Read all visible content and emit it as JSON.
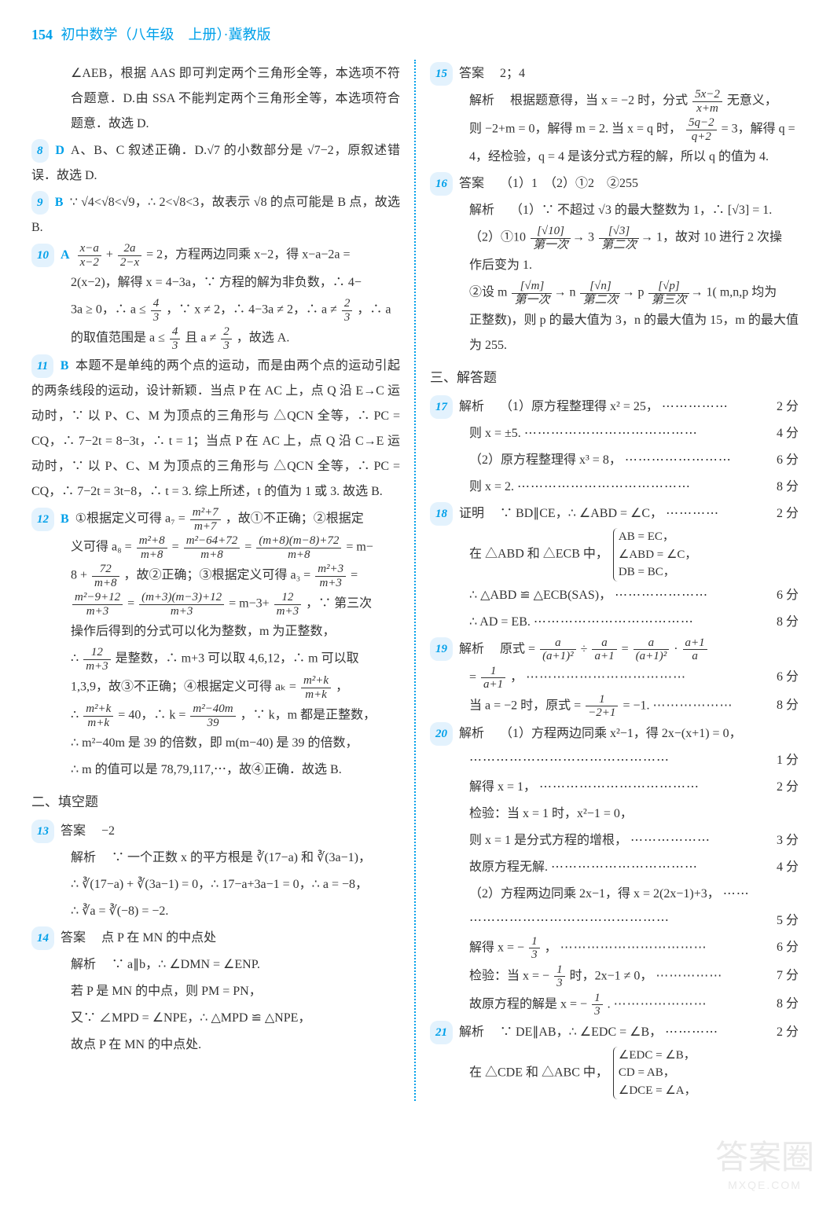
{
  "header": {
    "page_number": "154",
    "title": "初中数学（八年级　上册）·冀教版"
  },
  "left": {
    "p1": "∠AEB，根据 AAS 即可判定两个三角形全等，本选项不符合题意．D.由 SSA 不能判定两个三角形全等，本选项符合题意．故选 D.",
    "q8_num": "8",
    "q8_ans": "D",
    "q8_text": "A、B、C 叙述正确．D.√7 的小数部分是 √7−2，原叙述错误．故选 D.",
    "q9_num": "9",
    "q9_ans": "B",
    "q9_text": "∵ √4<√8<√9，∴ 2<√8<3，故表示 √8 的点可能是 B 点，故选 B.",
    "q10_num": "10",
    "q10_ans": "A",
    "q10_frac1_num": "x−a",
    "q10_frac1_den": "x−2",
    "q10_frac2_num": "2a",
    "q10_frac2_den": "2−x",
    "q10_text1": "= 2，方程两边同乘 x−2，得 x−a−2a =",
    "q10_text2": "2(x−2)，解得 x = 4−3a，∵ 方程的解为非负数，∴ 4−",
    "q10_text3_a": "3a ≥ 0，∴ a ≤",
    "q10_frac3_num": "4",
    "q10_frac3_den": "3",
    "q10_text3_b": "，∵ x ≠ 2，∴ 4−3a ≠ 2，∴ a ≠",
    "q10_frac4_num": "2",
    "q10_frac4_den": "3",
    "q10_text3_c": "，∴ a",
    "q10_text4_a": "的取值范围是 a ≤",
    "q10_text4_b": " 且 a ≠",
    "q10_text4_c": "，故选 A.",
    "q11_num": "11",
    "q11_ans": "B",
    "q11_text": "本题不是单纯的两个点的运动，而是由两个点的运动引起的两条线段的运动，设计新颖．当点 P 在 AC 上，点 Q 沿 E→C 运动时，∵ 以 P、C、M 为顶点的三角形与 △QCN 全等，∴ PC = CQ，∴ 7−2t = 8−3t，∴ t = 1；当点 P 在 AC 上，点 Q 沿 C→E 运动时，∵ 以 P、C、M 为顶点的三角形与 △QCN 全等，∴ PC = CQ，∴ 7−2t = 3t−8，∴ t = 3. 综上所述，t 的值为 1 或 3. 故选 B.",
    "q12_num": "12",
    "q12_ans": "B",
    "q12_line1_a": "①根据定义可得 a₇ =",
    "q12_f1_num": "m²+7",
    "q12_f1_den": "m+7",
    "q12_line1_b": "，故①不正确；②根据定",
    "q12_line2_a": "义可得 a₈ =",
    "q12_f2_num": "m²+8",
    "q12_f2_den": "m+8",
    "q12_line2_b": "=",
    "q12_f3_num": "m²−64+72",
    "q12_f3_den": "m+8",
    "q12_line2_c": "=",
    "q12_f4_num": "(m+8)(m−8)+72",
    "q12_f4_den": "m+8",
    "q12_line2_d": "= m−",
    "q12_line3_a": "8 +",
    "q12_f5_num": "72",
    "q12_f5_den": "m+8",
    "q12_line3_b": "，故②正确；③根据定义可得 a₃ =",
    "q12_f6_num": "m²+3",
    "q12_f6_den": "m+3",
    "q12_line3_c": "=",
    "q12_f7_num": "m²−9+12",
    "q12_f7_den": "m+3",
    "q12_line4_a": "=",
    "q12_f8_num": "(m+3)(m−3)+12",
    "q12_f8_den": "m+3",
    "q12_line4_b": "= m−3+",
    "q12_f9_num": "12",
    "q12_f9_den": "m+3",
    "q12_line4_c": "，∵ 第三次",
    "q12_line5": "操作后得到的分式可以化为整数，m 为正整数，",
    "q12_line6_a": "∴",
    "q12_f10_num": "12",
    "q12_f10_den": "m+3",
    "q12_line6_b": "是整数，∴ m+3 可以取 4,6,12，∴ m 可以取",
    "q12_line7_a": "1,3,9，故③不正确；④根据定义可得 aₖ =",
    "q12_f11_num": "m²+k",
    "q12_f11_den": "m+k",
    "q12_line7_b": "，",
    "q12_line8_a": "∴",
    "q12_f12_num": "m²+k",
    "q12_f12_den": "m+k",
    "q12_line8_b": "= 40，∴ k =",
    "q12_f13_num": "m²−40m",
    "q12_f13_den": "39",
    "q12_line8_c": "，∵ k，m 都是正整数，",
    "q12_line9": "∴ m²−40m 是 39 的倍数，即 m(m−40) 是 39 的倍数，",
    "q12_line10": "∴ m 的值可以是 78,79,117,⋯，故④正确．故选 B.",
    "section2": "二、填空题",
    "q13_num": "13",
    "q13_label": "答案",
    "q13_ans": "−2",
    "q13_jiexi": "解析",
    "q13_text1": "∵ 一个正数 x 的平方根是 ∛(17−a) 和 ∛(3a−1)，",
    "q13_text2": "∴ ∛(17−a) + ∛(3a−1) = 0，∴ 17−a+3a−1 = 0，∴ a = −8，",
    "q13_text3": "∴ ∛a = ∛(−8) = −2.",
    "q14_num": "14",
    "q14_label": "答案",
    "q14_ans": "点 P 在 MN 的中点处",
    "q14_jiexi": "解析",
    "q14_text1": "∵ a∥b，∴ ∠DMN = ∠ENP.",
    "q14_text2": "若 P 是 MN 的中点，则 PM = PN，",
    "q14_text3": "又∵ ∠MPD = ∠NPE，∴ △MPD ≌ △NPE，",
    "q14_text4": "故点 P 在 MN 的中点处."
  },
  "right": {
    "q15_num": "15",
    "q15_label": "答案",
    "q15_ans": "2；4",
    "q15_jiexi": "解析",
    "q15_text1_a": "根据题意得，当 x = −2 时，分式",
    "q15_f1_num": "5x−2",
    "q15_f1_den": "x+m",
    "q15_text1_b": "无意义，",
    "q15_text2_a": "则 −2+m = 0，解得 m = 2. 当 x = q 时，",
    "q15_f2_num": "5q−2",
    "q15_f2_den": "q+2",
    "q15_text2_b": "= 3，解得 q =",
    "q15_text3": "4，经检验，q = 4 是该分式方程的解，所以 q 的值为 4.",
    "q16_num": "16",
    "q16_label": "答案",
    "q16_ans": "（1）1　（2）①2　②255",
    "q16_jiexi": "解析",
    "q16_text1": "（1）∵ 不超过 √3 的最大整数为 1，∴ [√3] = 1.",
    "q16_text2_a": "（2）①10",
    "q16_arr1_top": "[√10]",
    "q16_arr1_bot": "第一次",
    "q16_text2_b": "3",
    "q16_arr2_top": "[√3]",
    "q16_arr2_bot": "第二次",
    "q16_text2_c": "1，故对 10 进行 2 次操",
    "q16_text3": "作后变为 1.",
    "q16_text4_a": "②设 m",
    "q16_arr3_top": "[√m]",
    "q16_arr3_bot": "第一次",
    "q16_text4_b": "n",
    "q16_arr4_top": "[√n]",
    "q16_arr4_bot": "第二次",
    "q16_text4_c": "p",
    "q16_arr5_top": "[√p]",
    "q16_arr5_bot": "第三次",
    "q16_text4_d": "1( m,n,p 均为",
    "q16_text5": "正整数)，则 p 的最大值为 3，n 的最大值为 15，m 的最大值为 255.",
    "section3": "三、解答题",
    "q17_num": "17",
    "q17_jiexi": "解析",
    "q17_l1": "（1）原方程整理得 x² = 25，",
    "q17_s1": "2 分",
    "q17_l2": "则 x = ±5.",
    "q17_s2": "4 分",
    "q17_l3": "（2）原方程整理得 x³ = 8，",
    "q17_s3": "6 分",
    "q17_l4": "则 x = 2.",
    "q17_s4": "8 分",
    "q18_num": "18",
    "q18_label": "证明",
    "q18_l1": "∵ BD∥CE，∴ ∠ABD = ∠C，",
    "q18_s1": "2 分",
    "q18_l2": "在 △ABD 和 △ECB 中，",
    "q18_b1": "AB = EC，",
    "q18_b2": "∠ABD = ∠C，",
    "q18_b3": "DB = BC，",
    "q18_l3": "∴ △ABD ≌ △ECB(SAS)，",
    "q18_s3": "6 分",
    "q18_l4": "∴ AD = EB.",
    "q18_s4": "8 分",
    "q19_num": "19",
    "q19_jiexi": "解析",
    "q19_l1_a": "原式 =",
    "q19_f1_num": "a",
    "q19_f1_den": "(a+1)²",
    "q19_l1_b": "÷",
    "q19_f2_num": "a",
    "q19_f2_den": "a+1",
    "q19_l1_c": "=",
    "q19_f3_num": "a",
    "q19_f3_den": "(a+1)²",
    "q19_l1_d": "·",
    "q19_f4_num": "a+1",
    "q19_f4_den": "a",
    "q19_l2_a": "=",
    "q19_f5_num": "1",
    "q19_f5_den": "a+1",
    "q19_l2_b": "，",
    "q19_s2": "6 分",
    "q19_l3_a": "当 a = −2 时，原式 =",
    "q19_f6_num": "1",
    "q19_f6_den": "−2+1",
    "q19_l3_b": "= −1.",
    "q19_s3": "8 分",
    "q20_num": "20",
    "q20_jiexi": "解析",
    "q20_l1": "（1）方程两边同乘 x²−1，得 2x−(x+1) = 0，",
    "q20_s1": "1 分",
    "q20_l2": "解得 x = 1，",
    "q20_s2": "2 分",
    "q20_l3": "检验：当 x = 1 时，x²−1 = 0，",
    "q20_l4": "则 x = 1 是分式方程的增根，",
    "q20_s4": "3 分",
    "q20_l5": "故原方程无解.",
    "q20_s5": "4 分",
    "q20_l6": "（2）方程两边同乘 2x−1，得 x = 2(2x−1)+3，",
    "q20_s6": "5 分",
    "q20_l7_a": "解得 x = −",
    "q20_f1_num": "1",
    "q20_f1_den": "3",
    "q20_l7_b": "，",
    "q20_s7": "6 分",
    "q20_l8_a": "检验：当 x = −",
    "q20_l8_b": " 时，2x−1 ≠ 0，",
    "q20_s8": "7 分",
    "q20_l9_a": "故原方程的解是 x = −",
    "q20_l9_b": ".",
    "q20_s9": "8 分",
    "q21_num": "21",
    "q21_jiexi": "解析",
    "q21_l1": "∵ DE∥AB，∴ ∠EDC = ∠B，",
    "q21_s1": "2 分",
    "q21_l2": "在 △CDE 和 △ABC 中，",
    "q21_b1": "∠EDC = ∠B，",
    "q21_b2": "CD = AB，",
    "q21_b3": "∠DCE = ∠A，"
  },
  "watermark": {
    "main": "答案圈",
    "sub": "MXQE.COM"
  }
}
